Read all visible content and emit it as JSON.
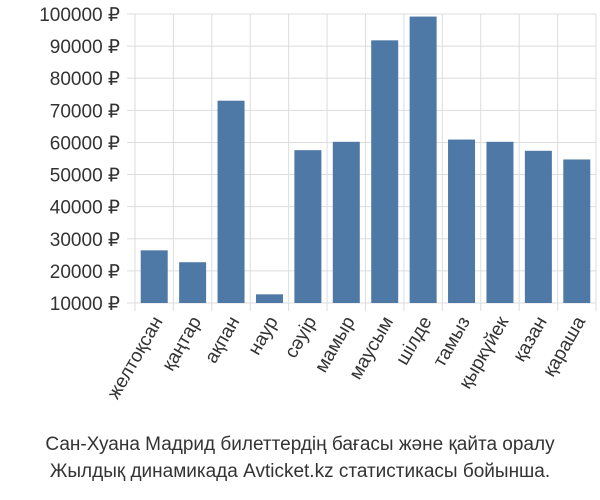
{
  "chart_data": {
    "type": "bar",
    "title": "",
    "xlabel": "",
    "ylabel": "",
    "currency_suffix": " ₽",
    "ylim": [
      10000,
      100000
    ],
    "yticks": [
      10000,
      20000,
      30000,
      40000,
      50000,
      60000,
      70000,
      80000,
      90000,
      100000
    ],
    "grid": true,
    "bar_color": "#4e79a7",
    "categories": [
      "желтоқсан",
      "қаңтар",
      "ақпан",
      "наур",
      "сәуір",
      "мамыр",
      "маусым",
      "шілде",
      "тамыз",
      "қыркүйек",
      "қазан",
      "қараша"
    ],
    "values": [
      26400,
      22700,
      73000,
      12700,
      57600,
      60200,
      91800,
      99200,
      60900,
      60200,
      57400,
      54700
    ]
  },
  "caption": {
    "line1": "Сан-Хуана Мадрид билеттердің бағасы және қайта оралу",
    "line2": "Жылдық динамикада Avticket.kz статистикасы бойынша."
  }
}
